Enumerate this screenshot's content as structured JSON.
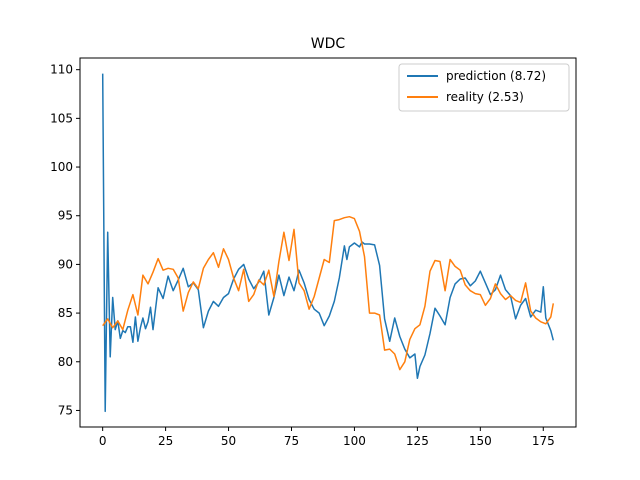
{
  "chart_data": {
    "type": "line",
    "title": "WDC",
    "xlabel": "",
    "ylabel": "",
    "xlim": [
      -9,
      188
    ],
    "ylim": [
      73.3,
      111.2
    ],
    "xticks": [
      0,
      25,
      50,
      75,
      100,
      125,
      150,
      175
    ],
    "yticks": [
      75,
      80,
      85,
      90,
      95,
      100,
      105,
      110
    ],
    "grid": false,
    "legend_position": "top-right",
    "series": [
      {
        "name": "prediction (8.72)",
        "color": "#1f77b4",
        "x": [
          0,
          1,
          2,
          3,
          4,
          5,
          6,
          7,
          8,
          9,
          10,
          11,
          12,
          13,
          14,
          15,
          16,
          17,
          18,
          19,
          20,
          22,
          24,
          26,
          28,
          30,
          32,
          34,
          36,
          38,
          40,
          42,
          44,
          46,
          48,
          50,
          52,
          54,
          56,
          58,
          60,
          62,
          64,
          66,
          68,
          70,
          72,
          74,
          76,
          78,
          80,
          82,
          84,
          86,
          88,
          90,
          92,
          94,
          96,
          97,
          98,
          100,
          102,
          103,
          104,
          106,
          108,
          110,
          112,
          114,
          116,
          118,
          120,
          122,
          124,
          125,
          126,
          128,
          130,
          132,
          134,
          136,
          138,
          140,
          142,
          144,
          146,
          148,
          150,
          152,
          154,
          156,
          158,
          160,
          162,
          164,
          166,
          168,
          170,
          172,
          174,
          175,
          176,
          178,
          179
        ],
        "y": [
          109.6,
          74.9,
          93.3,
          80.5,
          86.6,
          83.3,
          84.2,
          82.4,
          83.2,
          83.0,
          83.6,
          83.6,
          82.0,
          84.6,
          82.1,
          83.5,
          84.5,
          83.4,
          84.1,
          85.6,
          83.3,
          87.6,
          86.5,
          88.8,
          87.3,
          88.4,
          89.6,
          87.7,
          88.1,
          87.4,
          83.5,
          85.2,
          86.2,
          85.7,
          86.6,
          87.0,
          88.5,
          89.5,
          90.0,
          88.5,
          87.5,
          88.2,
          89.3,
          84.8,
          86.6,
          88.9,
          86.8,
          88.7,
          87.3,
          89.4,
          88.1,
          86.4,
          85.4,
          85.0,
          83.7,
          84.7,
          86.2,
          88.6,
          91.9,
          90.5,
          91.8,
          92.2,
          91.8,
          92.3,
          92.1,
          92.1,
          92.0,
          89.9,
          84.4,
          82.1,
          84.5,
          82.6,
          81.3,
          80.4,
          80.8,
          78.3,
          79.5,
          80.7,
          82.9,
          85.5,
          84.7,
          83.8,
          86.6,
          88.0,
          88.5,
          88.6,
          87.8,
          88.3,
          89.3,
          88.1,
          86.9,
          87.4,
          88.9,
          87.4,
          86.8,
          84.4,
          85.8,
          86.5,
          84.6,
          85.3,
          85.1,
          87.7,
          84.5,
          83.2,
          82.2
        ]
      },
      {
        "name": "reality (2.53)",
        "color": "#ff7f0e",
        "x": [
          0,
          2,
          4,
          6,
          8,
          10,
          12,
          14,
          16,
          18,
          20,
          22,
          24,
          26,
          28,
          30,
          32,
          34,
          36,
          38,
          40,
          42,
          44,
          46,
          48,
          50,
          52,
          54,
          56,
          58,
          60,
          62,
          64,
          66,
          68,
          70,
          72,
          74,
          76,
          78,
          80,
          82,
          84,
          86,
          88,
          90,
          92,
          94,
          96,
          98,
          100,
          102,
          104,
          106,
          108,
          110,
          112,
          114,
          116,
          118,
          120,
          122,
          124,
          126,
          128,
          130,
          132,
          134,
          136,
          138,
          140,
          142,
          144,
          146,
          148,
          150,
          152,
          154,
          156,
          158,
          160,
          162,
          164,
          166,
          168,
          170,
          172,
          174,
          176,
          178,
          179
        ],
        "y": [
          83.7,
          84.4,
          83.5,
          84.2,
          83.3,
          85.3,
          86.9,
          84.8,
          88.9,
          88.0,
          89.2,
          90.6,
          89.4,
          89.6,
          89.5,
          88.6,
          85.2,
          87.1,
          88.2,
          87.5,
          89.6,
          90.5,
          91.2,
          89.7,
          91.6,
          90.5,
          88.6,
          87.3,
          89.5,
          86.2,
          86.9,
          88.4,
          87.9,
          89.4,
          86.7,
          90.3,
          93.3,
          90.4,
          93.6,
          88.1,
          87.3,
          85.4,
          86.7,
          88.6,
          90.5,
          90.2,
          94.5,
          94.6,
          94.8,
          94.9,
          94.7,
          93.4,
          90.8,
          85.0,
          85.0,
          84.8,
          81.2,
          81.3,
          80.8,
          79.2,
          80.0,
          82.3,
          83.4,
          83.8,
          85.7,
          89.3,
          90.4,
          90.3,
          87.3,
          90.5,
          89.8,
          89.4,
          87.9,
          87.3,
          87.0,
          86.9,
          85.8,
          86.5,
          88.0,
          87.0,
          86.4,
          86.8,
          86.3,
          86.1,
          88.1,
          85.2,
          84.5,
          84.1,
          83.9,
          84.6,
          86.0
        ]
      }
    ]
  }
}
